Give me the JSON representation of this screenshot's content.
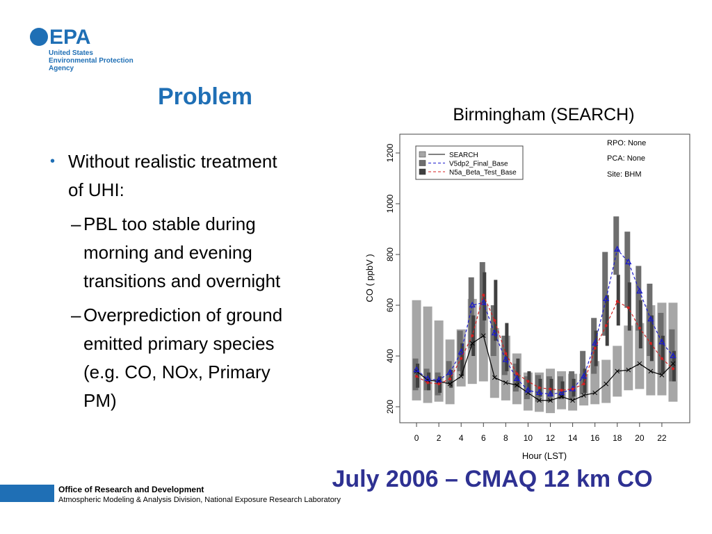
{
  "logo": {
    "mark": "EPA",
    "lines": [
      "United States",
      "Environmental Protection",
      "Agency"
    ]
  },
  "title": "Problem",
  "bullets": [
    {
      "marker": "•",
      "level": 1,
      "lines": [
        "Without realistic treatment",
        "of UHI:"
      ]
    },
    {
      "marker": "–",
      "level": 2,
      "lines": [
        "PBL too stable during",
        "morning and evening",
        "transitions and overnight"
      ]
    },
    {
      "marker": "–",
      "level": 2,
      "lines": [
        "Overprediction of ground",
        "emitted primary species",
        "(e.g. CO, NOx, Primary",
        "PM)"
      ]
    }
  ],
  "caption": "July 2006 – CMAQ 12 km CO",
  "footer": {
    "office": "Office of Research and Development",
    "division": "Atmospheric Modeling & Analysis Division, National Exposure Research Laboratory"
  },
  "chart_data": {
    "type": "box-line",
    "title": "Birmingham (SEARCH)",
    "x_label": "Hour (LST)",
    "y_label": "CO ( ppbV )",
    "annotations": [
      "RPO: None",
      "PCA: None",
      "Site: BHM"
    ],
    "x": [
      0,
      1,
      2,
      3,
      4,
      5,
      6,
      7,
      8,
      9,
      10,
      11,
      12,
      13,
      14,
      15,
      16,
      17,
      18,
      19,
      20,
      21,
      22,
      23
    ],
    "xlim": [
      -1.5,
      24.5
    ],
    "xticks": [
      0,
      2,
      4,
      6,
      8,
      10,
      12,
      14,
      16,
      18,
      20,
      22
    ],
    "ylim": [
      137,
      1274
    ],
    "yticks": [
      200,
      400,
      600,
      800,
      1000,
      1200
    ],
    "series": [
      {
        "name": "SEARCH",
        "color": "#000000",
        "box_color": "#a6a6a6",
        "marker": "x",
        "dashed": false,
        "values": [
          340,
          305,
          300,
          290,
          320,
          450,
          480,
          315,
          295,
          285,
          255,
          225,
          225,
          240,
          225,
          245,
          255,
          290,
          340,
          345,
          370,
          340,
          325,
          370
        ],
        "box_low": [
          225,
          215,
          220,
          210,
          280,
          290,
          300,
          235,
          225,
          210,
          185,
          180,
          175,
          190,
          185,
          205,
          210,
          215,
          240,
          265,
          270,
          245,
          245,
          220
        ],
        "box_high": [
          620,
          595,
          540,
          465,
          505,
          625,
          600,
          510,
          480,
          410,
          335,
          335,
          350,
          340,
          330,
          330,
          380,
          385,
          440,
          520,
          530,
          600,
          610,
          610
        ]
      },
      {
        "name": "V5dp2_Final_Base",
        "color": "#1a1acc",
        "box_color": "#6e6e6e",
        "marker": "triangle",
        "dashed": true,
        "values": [
          345,
          310,
          305,
          335,
          415,
          600,
          610,
          490,
          385,
          310,
          265,
          255,
          250,
          255,
          270,
          320,
          450,
          625,
          820,
          770,
          655,
          545,
          455,
          400
        ],
        "box_low": [
          265,
          265,
          245,
          290,
          340,
          430,
          475,
          400,
          325,
          260,
          230,
          220,
          220,
          230,
          230,
          250,
          330,
          480,
          720,
          590,
          500,
          400,
          330,
          300
        ],
        "box_high": [
          390,
          350,
          335,
          380,
          500,
          710,
          770,
          600,
          480,
          370,
          320,
          325,
          320,
          320,
          340,
          420,
          550,
          810,
          950,
          890,
          755,
          685,
          570,
          505
        ]
      },
      {
        "name": "N5a_Beta_Test_Base",
        "color": "#d42020",
        "box_color": "#404040",
        "marker": "dot",
        "dashed": true,
        "values": [
          320,
          295,
          290,
          310,
          390,
          480,
          640,
          540,
          410,
          330,
          300,
          275,
          270,
          265,
          270,
          290,
          430,
          520,
          615,
          590,
          510,
          450,
          390,
          350
        ],
        "box_low": [
          275,
          265,
          255,
          275,
          320,
          400,
          540,
          460,
          340,
          280,
          260,
          240,
          240,
          235,
          240,
          255,
          360,
          440,
          520,
          500,
          430,
          380,
          330,
          300
        ],
        "box_high": [
          370,
          335,
          320,
          345,
          450,
          560,
          730,
          700,
          530,
          390,
          340,
          310,
          310,
          300,
          310,
          350,
          500,
          640,
          720,
          690,
          620,
          560,
          480,
          420
        ]
      }
    ]
  }
}
